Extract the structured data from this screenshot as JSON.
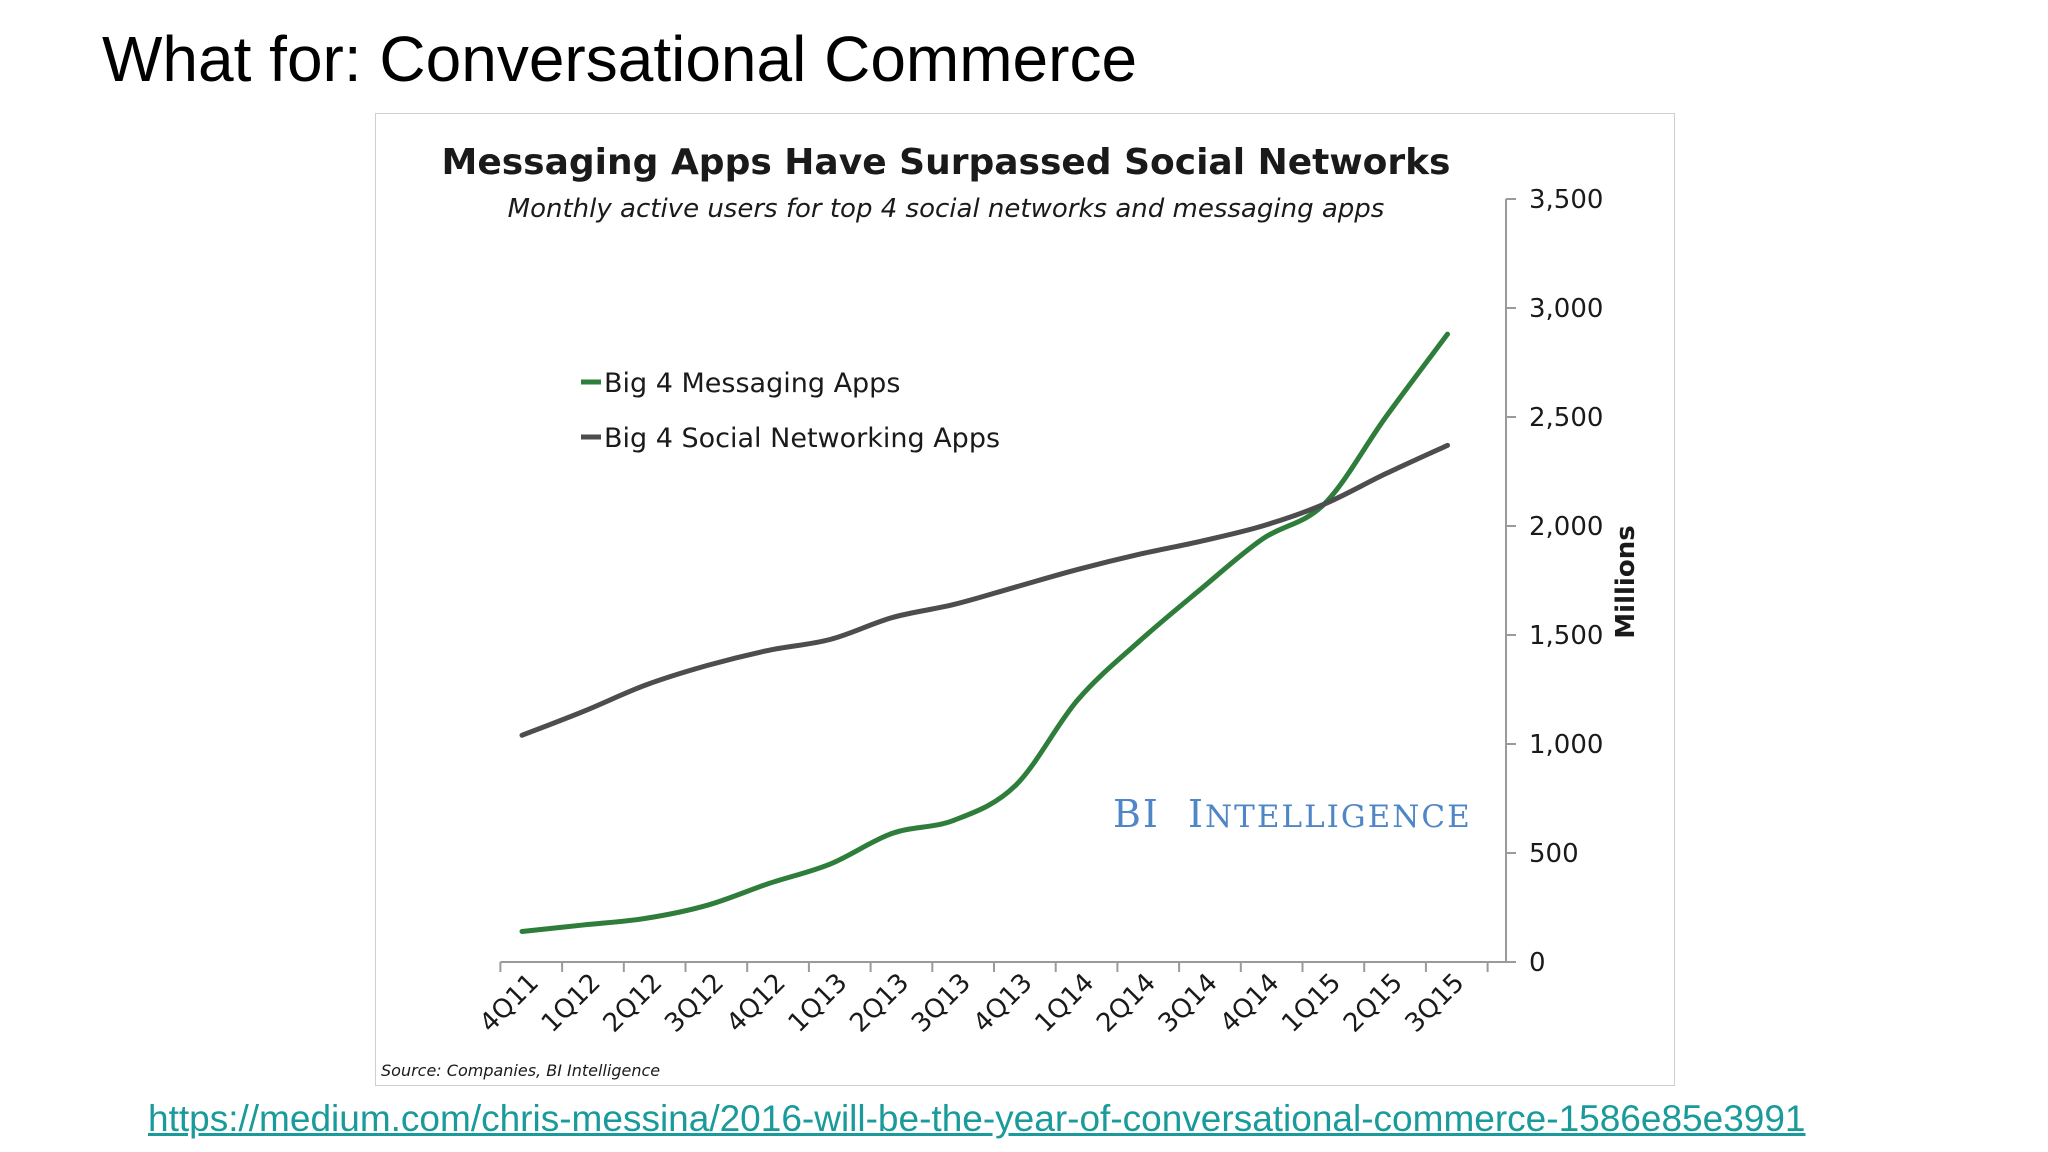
{
  "slide": {
    "title": "What for: Conversational Commerce",
    "link": "https://medium.com/chris-messina/2016-will-be-the-year-of-conversational-commerce-1586e85e3991"
  },
  "chart_data": {
    "type": "line",
    "title": "Messaging Apps Have Surpassed Social Networks",
    "subtitle": "Monthly active users for top 4 social networks and messaging apps",
    "ylabel": "Millions",
    "xlabel": "",
    "ylim": [
      0,
      3500
    ],
    "yticks": [
      0,
      500,
      1000,
      1500,
      2000,
      2500,
      3000,
      3500
    ],
    "ytick_labels": [
      "0",
      "500",
      "1,000",
      "1,500",
      "2,000",
      "2,500",
      "3,000",
      "3,500"
    ],
    "y_axis_side": "right",
    "grid": false,
    "legend_position": "top-left",
    "categories": [
      "4Q11",
      "1Q12",
      "2Q12",
      "3Q12",
      "4Q12",
      "1Q13",
      "2Q13",
      "3Q13",
      "4Q13",
      "1Q14",
      "2Q14",
      "3Q14",
      "4Q14",
      "1Q15",
      "2Q15",
      "3Q15"
    ],
    "series": [
      {
        "name": "Big 4 Messaging Apps",
        "color": "#2e7d3a",
        "values": [
          140,
          170,
          200,
          260,
          360,
          450,
          590,
          650,
          810,
          1200,
          1470,
          1710,
          1940,
          2100,
          2500,
          2880
        ]
      },
      {
        "name": "Big 4 Social Networking Apps",
        "color": "#4d4d4f",
        "values": [
          1040,
          1150,
          1270,
          1360,
          1430,
          1480,
          1580,
          1640,
          1720,
          1800,
          1870,
          1930,
          2000,
          2100,
          2240,
          2370
        ]
      }
    ],
    "source": "Source: Companies, BI Intelligence",
    "watermark": {
      "big": "BI",
      "i": "I",
      "rest": "NTELLIGENCE"
    }
  }
}
